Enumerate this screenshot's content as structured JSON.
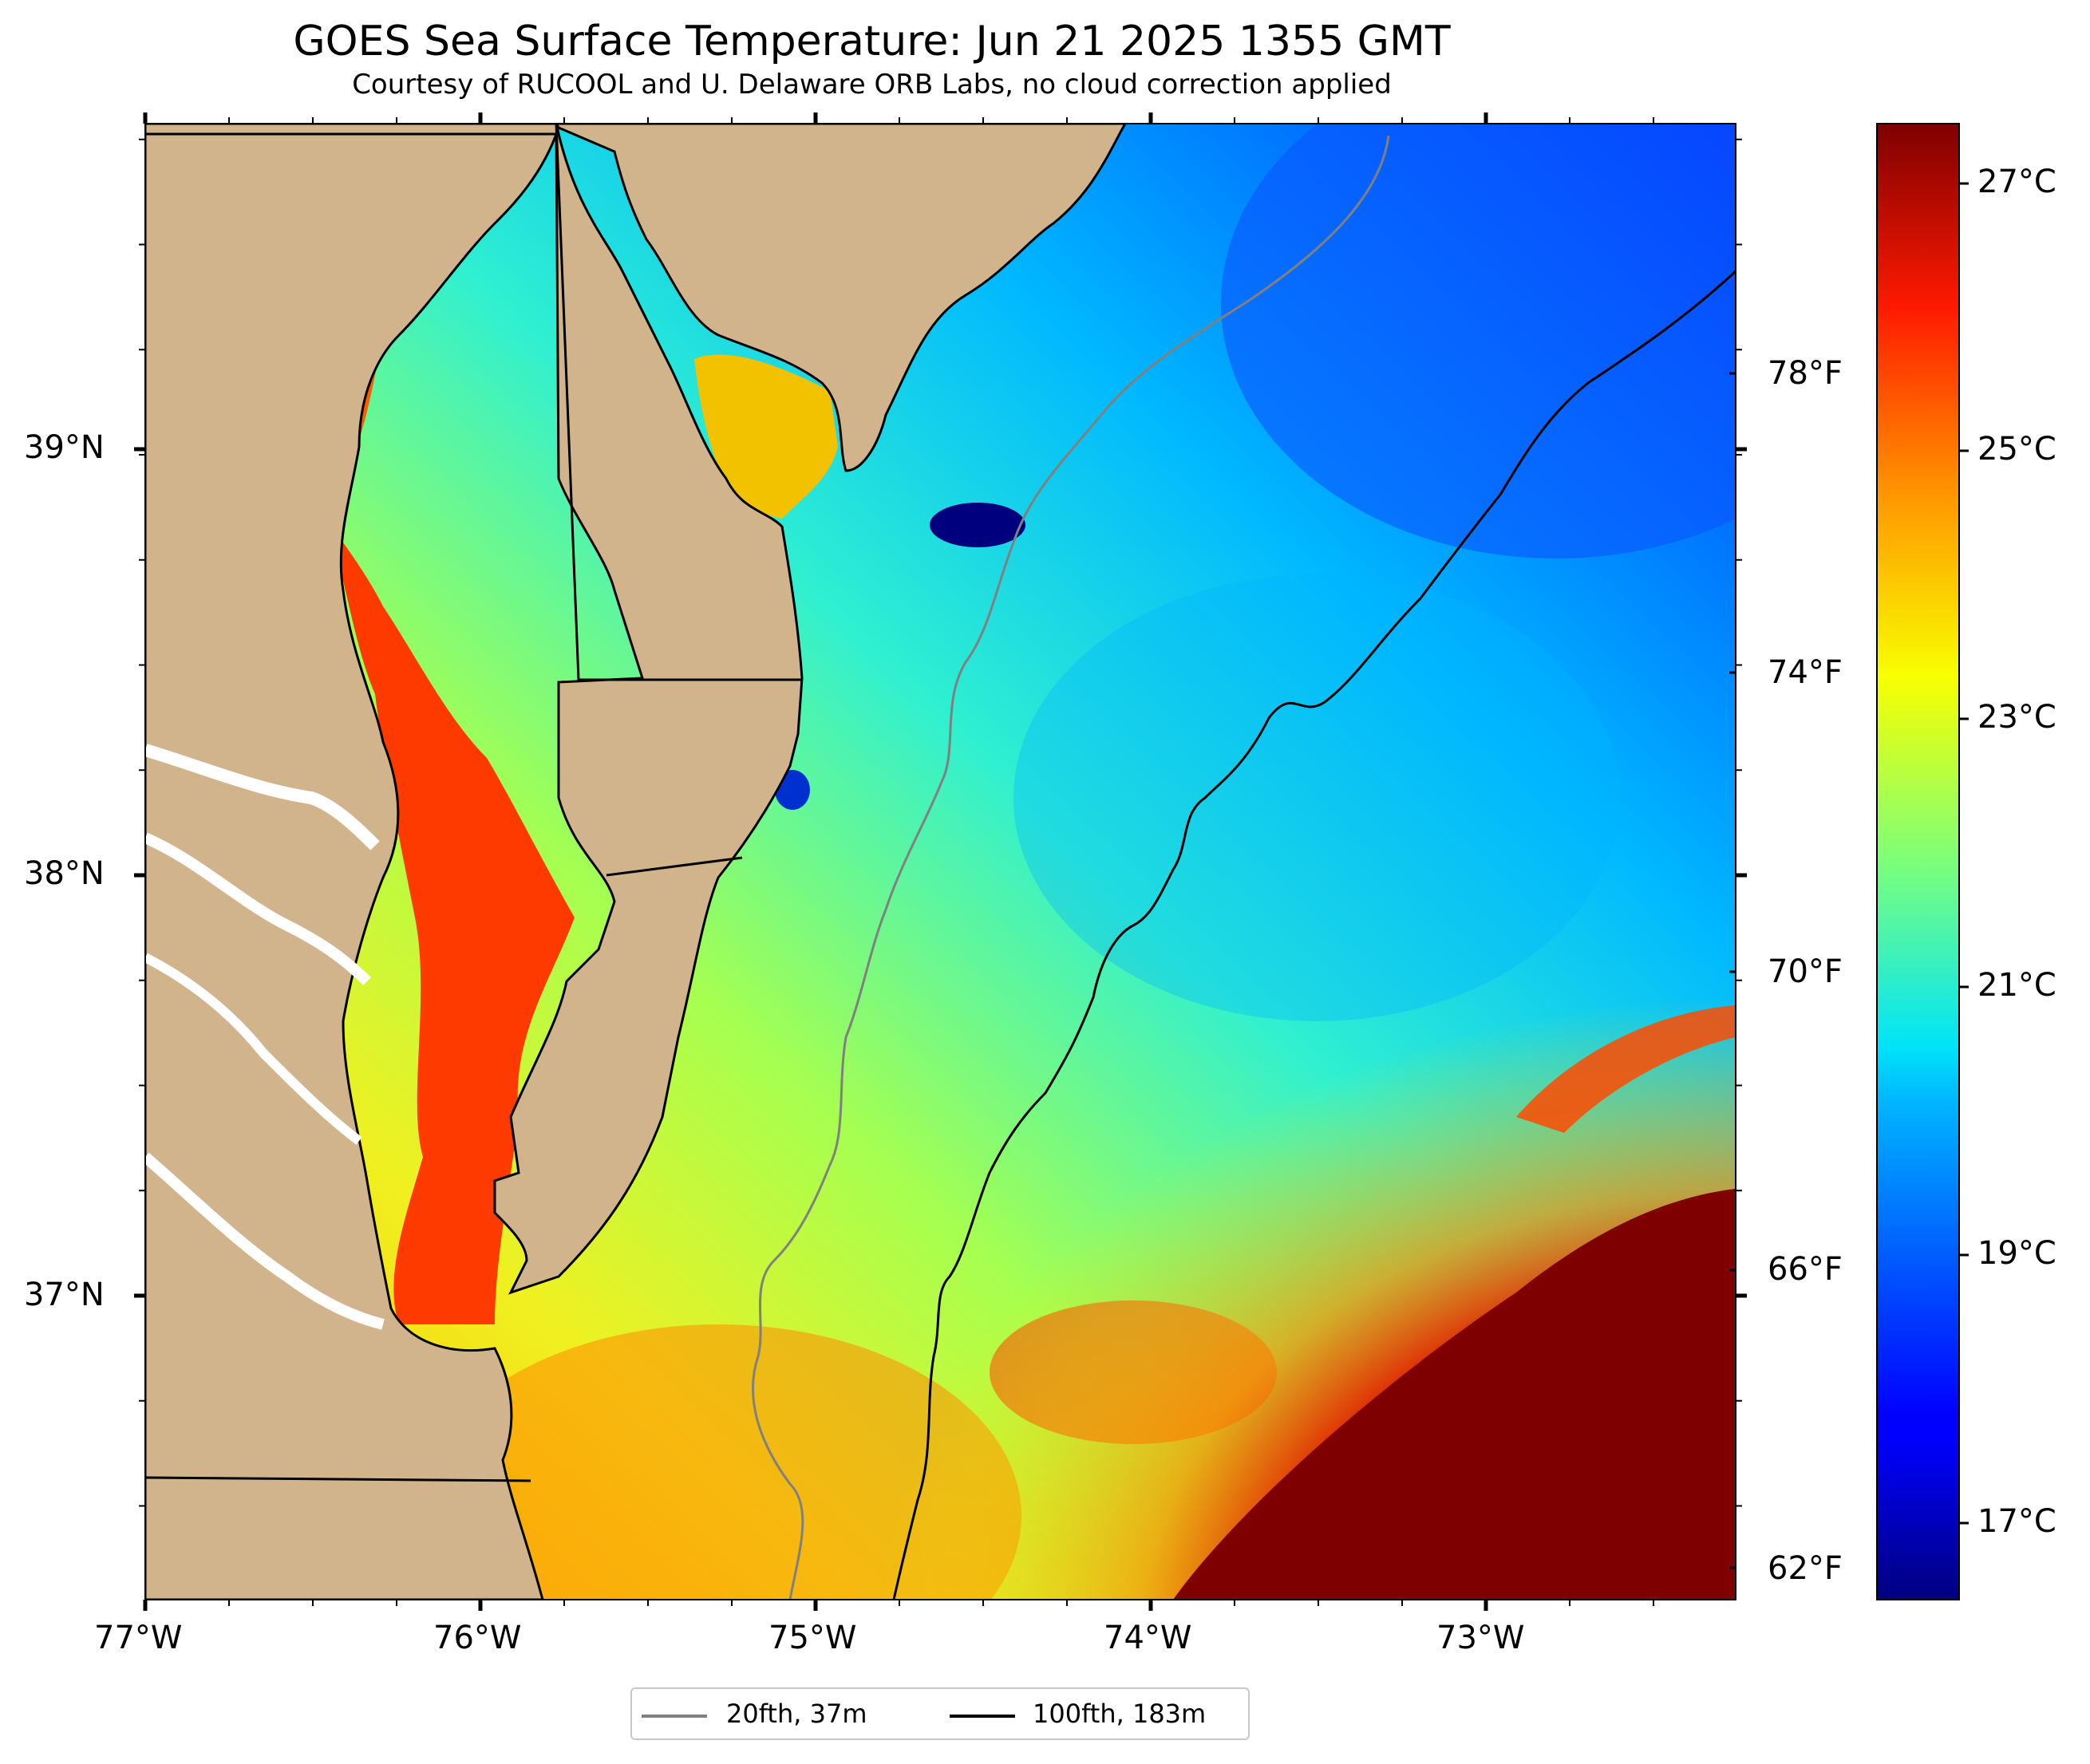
{
  "title": "GOES Sea Surface Temperature: Jun 21 2025 1355 GMT",
  "subtitle": "Courtesy of RUCOOL and U. Delaware ORB Labs, no cloud correction applied",
  "map": {
    "x_axis_labels": [
      "77°W",
      "76°W",
      "75°W",
      "74°W",
      "73°W"
    ],
    "y_axis_labels": [
      "39°N",
      "38°N",
      "37°N"
    ],
    "land_color": "#d2b48c",
    "colormap": "jet"
  },
  "colorbar": {
    "celsius_labels": [
      "27°C",
      "25°C",
      "23°C",
      "21°C",
      "19°C",
      "17°C"
    ],
    "fahrenheit_labels": [
      "78°F",
      "74°F",
      "70°F",
      "66°F",
      "62°F"
    ],
    "range_celsius": [
      16.3,
      27.5
    ]
  },
  "legend": {
    "items": [
      {
        "label": "20fth, 37m",
        "color": "#808080"
      },
      {
        "label": "100fth, 183m",
        "color": "#000000"
      }
    ]
  }
}
